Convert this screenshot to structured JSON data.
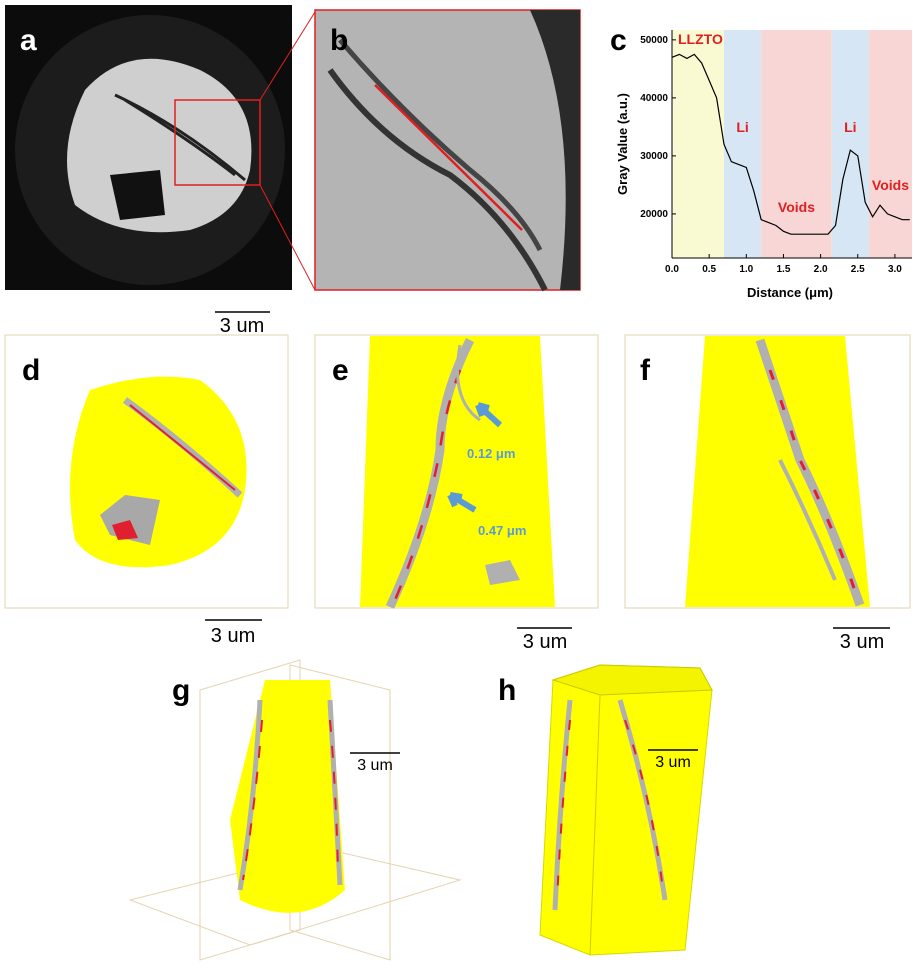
{
  "panels": [
    {
      "label": "a",
      "scale_bar": "3 um"
    },
    {
      "label": "b"
    },
    {
      "label": "c"
    },
    {
      "label": "d",
      "scale_bar": "3 um"
    },
    {
      "label": "e",
      "scale_bar": "3 um",
      "annotations": [
        "0.12 μm",
        "0.47 μm"
      ]
    },
    {
      "label": "f",
      "scale_bar": "3 um"
    },
    {
      "label": "g",
      "scale_bar": "3 um"
    },
    {
      "label": "h",
      "scale_bar": "3 um"
    }
  ],
  "chart_data": {
    "type": "line",
    "xlabel": "Distance (μm)",
    "ylabel": "Gray Value (a.u.)",
    "x": [
      0.0,
      0.1,
      0.2,
      0.3,
      0.4,
      0.5,
      0.6,
      0.7,
      0.8,
      0.9,
      1.0,
      1.1,
      1.2,
      1.3,
      1.4,
      1.5,
      1.6,
      1.7,
      1.8,
      1.9,
      2.0,
      2.1,
      2.2,
      2.3,
      2.4,
      2.5,
      2.6,
      2.7,
      2.8,
      2.9,
      3.0,
      3.1,
      3.2
    ],
    "series": [
      {
        "color": "#000000",
        "values": [
          47000,
          47500,
          46800,
          47500,
          46000,
          43000,
          40000,
          32000,
          29000,
          28500,
          28000,
          24000,
          19000,
          18500,
          18000,
          17000,
          16500,
          16500,
          16500,
          16500,
          16500,
          16500,
          18000,
          26000,
          31000,
          30000,
          22000,
          19500,
          21500,
          20000,
          19500,
          19000,
          19000
        ]
      }
    ],
    "regions": [
      {
        "label": "LLZTO",
        "start": 0,
        "end": 0.7,
        "color": "#fafad2"
      },
      {
        "label": "Li",
        "start": 0.7,
        "end": 1.2,
        "color": "#d6e6f4"
      },
      {
        "label": "Voids",
        "start": 1.2,
        "end": 2.15,
        "color": "#f9d6d6"
      },
      {
        "label": "Li",
        "start": 2.15,
        "end": 2.65,
        "color": "#d6e6f4"
      },
      {
        "label": "Voids",
        "start": 2.65,
        "end": 3.23,
        "color": "#f9d6d6"
      }
    ],
    "xlim": [
      0,
      3.23
    ],
    "ylim": [
      12400,
      51700
    ],
    "xticks": [
      {
        "value": 0,
        "label": "0.0"
      },
      {
        "value": 0.5,
        "label": "0.5"
      },
      {
        "value": 1,
        "label": "1.0"
      },
      {
        "value": 1.5,
        "label": "1.5"
      },
      {
        "value": 2,
        "label": "2.0"
      },
      {
        "value": 2.5,
        "label": "2.5"
      },
      {
        "value": 3,
        "label": "3.0"
      }
    ],
    "yticks": [
      20000,
      30000,
      40000,
      50000
    ]
  }
}
